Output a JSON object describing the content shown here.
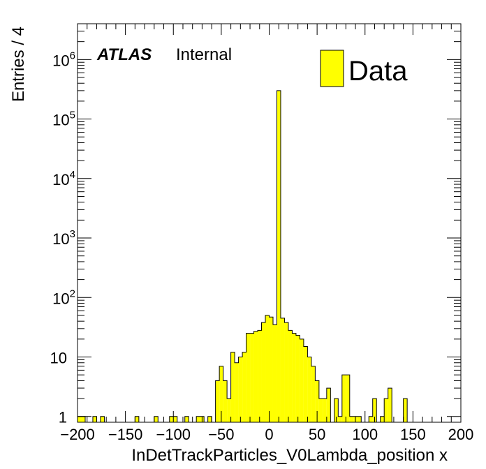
{
  "chart_data": {
    "type": "bar",
    "style": "histogram",
    "xlabel": "InDetTrackParticles_V0Lambda_position x",
    "ylabel": "Entries / 4",
    "xlim": [
      -200,
      200
    ],
    "ylim": [
      0.8,
      4000000
    ],
    "yscale": "log",
    "bin_width": 4,
    "x_ticks": [
      "−200",
      "−150",
      "−100",
      "−50",
      "0",
      "50",
      "100",
      "150",
      "200"
    ],
    "y_ticks": [
      {
        "base": "1",
        "exp": ""
      },
      {
        "base": "10",
        "exp": ""
      },
      {
        "base": "10",
        "exp": "2"
      },
      {
        "base": "10",
        "exp": "3"
      },
      {
        "base": "10",
        "exp": "4"
      },
      {
        "base": "10",
        "exp": "5"
      },
      {
        "base": "10",
        "exp": "6"
      }
    ],
    "experiment_label": "ATLAS",
    "status_label": "Internal",
    "legend_position": "top-right",
    "fill_color": "#ffff00",
    "series": [
      {
        "name": "Data",
        "bins": [
          [
            -200,
            1
          ],
          [
            -196,
            1
          ],
          [
            -184,
            1
          ],
          [
            -176,
            1
          ],
          [
            -140,
            1
          ],
          [
            -120,
            1
          ],
          [
            -104,
            1
          ],
          [
            -100,
            1
          ],
          [
            -88,
            1
          ],
          [
            -76,
            1
          ],
          [
            -72,
            1
          ],
          [
            -64,
            1
          ],
          [
            -56,
            4
          ],
          [
            -52,
            7
          ],
          [
            -48,
            4
          ],
          [
            -44,
            2
          ],
          [
            -40,
            12
          ],
          [
            -36,
            8
          ],
          [
            -32,
            10
          ],
          [
            -28,
            12
          ],
          [
            -24,
            25
          ],
          [
            -20,
            25
          ],
          [
            -16,
            27
          ],
          [
            -12,
            28
          ],
          [
            -8,
            38
          ],
          [
            -4,
            50
          ],
          [
            0,
            47
          ],
          [
            4,
            35
          ],
          [
            8,
            300000
          ],
          [
            12,
            45
          ],
          [
            16,
            38
          ],
          [
            20,
            28
          ],
          [
            24,
            25
          ],
          [
            28,
            23
          ],
          [
            32,
            20
          ],
          [
            36,
            15
          ],
          [
            40,
            10
          ],
          [
            44,
            7
          ],
          [
            48,
            4
          ],
          [
            52,
            2
          ],
          [
            56,
            2
          ],
          [
            60,
            3
          ],
          [
            68,
            2
          ],
          [
            72,
            1
          ],
          [
            76,
            5
          ],
          [
            80,
            5
          ],
          [
            84,
            1
          ],
          [
            88,
            1
          ],
          [
            92,
            1
          ],
          [
            104,
            1
          ],
          [
            108,
            2
          ],
          [
            116,
            1
          ],
          [
            120,
            2
          ],
          [
            124,
            3
          ],
          [
            140,
            2
          ]
        ]
      }
    ]
  }
}
